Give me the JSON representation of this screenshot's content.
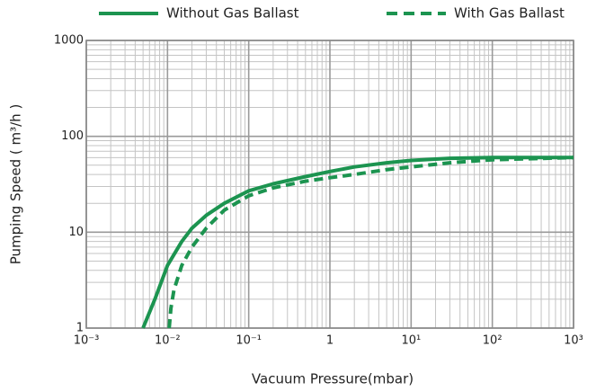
{
  "chart_data": {
    "type": "line",
    "xlabel": "Vacuum Pressure(mbar)",
    "ylabel": "Pumping Speed ( m³/h )",
    "xscale": "log",
    "yscale": "log",
    "grid": true,
    "legend": "top",
    "xlim": [
      0.001,
      1000
    ],
    "ylim": [
      1,
      1000
    ],
    "xticks": [
      {
        "value": 0.001,
        "label": "10⁻³"
      },
      {
        "value": 0.01,
        "label": "10⁻²"
      },
      {
        "value": 0.1,
        "label": "10⁻¹"
      },
      1,
      {
        "value": 10,
        "label": "10¹"
      },
      {
        "value": 100,
        "label": "10²"
      },
      {
        "value": 1000,
        "label": "10³"
      }
    ],
    "yticks": [
      1,
      10,
      100,
      1000
    ],
    "series": [
      {
        "name": "Without Gas Ballast",
        "color": "#1c9450",
        "dash": "solid",
        "x": [
          0.005,
          0.007,
          0.01,
          0.015,
          0.02,
          0.03,
          0.05,
          0.1,
          0.2,
          0.5,
          1,
          2,
          5,
          10,
          30,
          100,
          1000
        ],
        "values": [
          1,
          2,
          4.5,
          8,
          11,
          15,
          20,
          27,
          32,
          38,
          43,
          48,
          53,
          56,
          59,
          60,
          60
        ]
      },
      {
        "name": "With Gas Ballast",
        "color": "#1c9450",
        "dash": "dashed",
        "x": [
          0.0105,
          0.011,
          0.012,
          0.015,
          0.02,
          0.03,
          0.05,
          0.1,
          0.2,
          0.5,
          1,
          2,
          5,
          10,
          30,
          100,
          1000
        ],
        "values": [
          1,
          1.6,
          2.5,
          4.5,
          7,
          11,
          17,
          24,
          29,
          34,
          37,
          40,
          45,
          48,
          53,
          57,
          60
        ]
      }
    ]
  }
}
